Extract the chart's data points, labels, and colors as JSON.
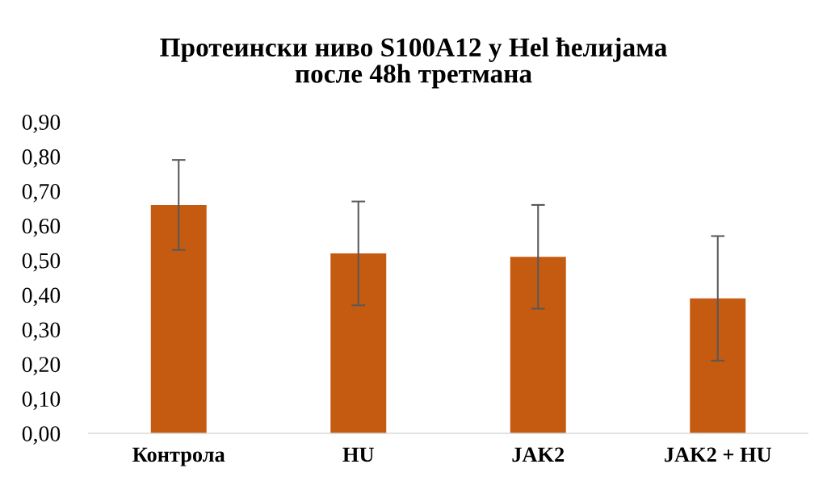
{
  "chart_data": {
    "type": "bar",
    "title": "Протеински ниво S100A12 у Hel ћелијама\nпосле 48h третмана",
    "categories": [
      "Контрола",
      "HU",
      "JAK2",
      "JAK2 + HU"
    ],
    "values": [
      0.66,
      0.52,
      0.51,
      0.39
    ],
    "errors": [
      0.13,
      0.15,
      0.15,
      0.18
    ],
    "color": "#c55a11",
    "ylim": [
      0,
      0.9
    ],
    "yticks": [
      {
        "value": 0,
        "label": "0,00"
      },
      {
        "value": 0.1,
        "label": "0,10"
      },
      {
        "value": 0.2,
        "label": "0,20"
      },
      {
        "value": 0.3,
        "label": "0,30"
      },
      {
        "value": 0.4,
        "label": "0,40"
      },
      {
        "value": 0.5,
        "label": "0,50"
      },
      {
        "value": 0.6,
        "label": "0,60"
      },
      {
        "value": 0.7,
        "label": "0,70"
      },
      {
        "value": 0.8,
        "label": "0,80"
      },
      {
        "value": 0.9,
        "label": "0,90"
      }
    ],
    "grid": false
  }
}
